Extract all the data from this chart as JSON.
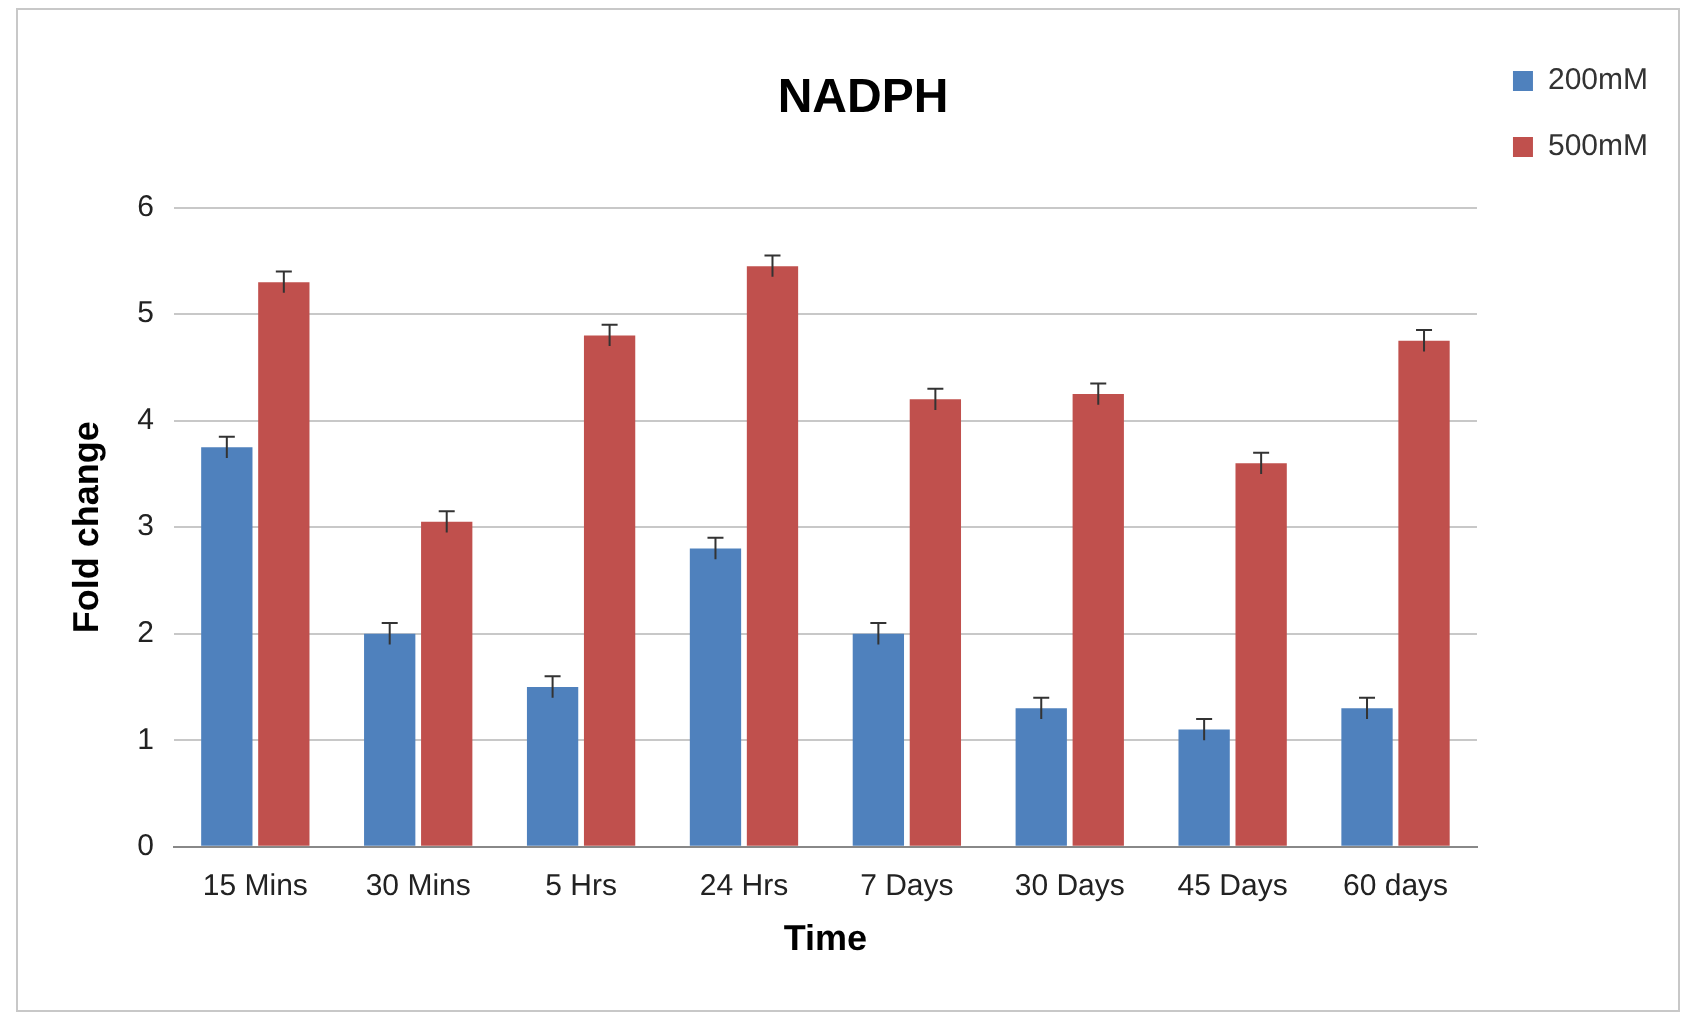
{
  "chart_data": {
    "type": "bar",
    "title": "NADPH",
    "xlabel": "Time",
    "ylabel": "Fold change",
    "categories": [
      "15 Mins",
      "30 Mins",
      "5 Hrs",
      "24 Hrs",
      "7 Days",
      "30 Days",
      "45 Days",
      "60 days"
    ],
    "series": [
      {
        "name": "200mM",
        "color": "#4f81bd",
        "values": [
          3.75,
          2.0,
          1.5,
          2.8,
          2.0,
          1.3,
          1.1,
          1.3
        ],
        "errors": [
          0.1,
          0.1,
          0.1,
          0.1,
          0.1,
          0.1,
          0.1,
          0.1
        ]
      },
      {
        "name": "500mM",
        "color": "#c0504d",
        "values": [
          5.3,
          3.05,
          4.8,
          5.45,
          4.2,
          4.25,
          3.6,
          4.75
        ],
        "errors": [
          0.1,
          0.1,
          0.1,
          0.1,
          0.1,
          0.1,
          0.1,
          0.1
        ]
      }
    ],
    "ylim": [
      0,
      6
    ],
    "yticks": [
      0,
      1,
      2,
      3,
      4,
      5,
      6
    ],
    "grid": "y",
    "legend": "top right"
  }
}
